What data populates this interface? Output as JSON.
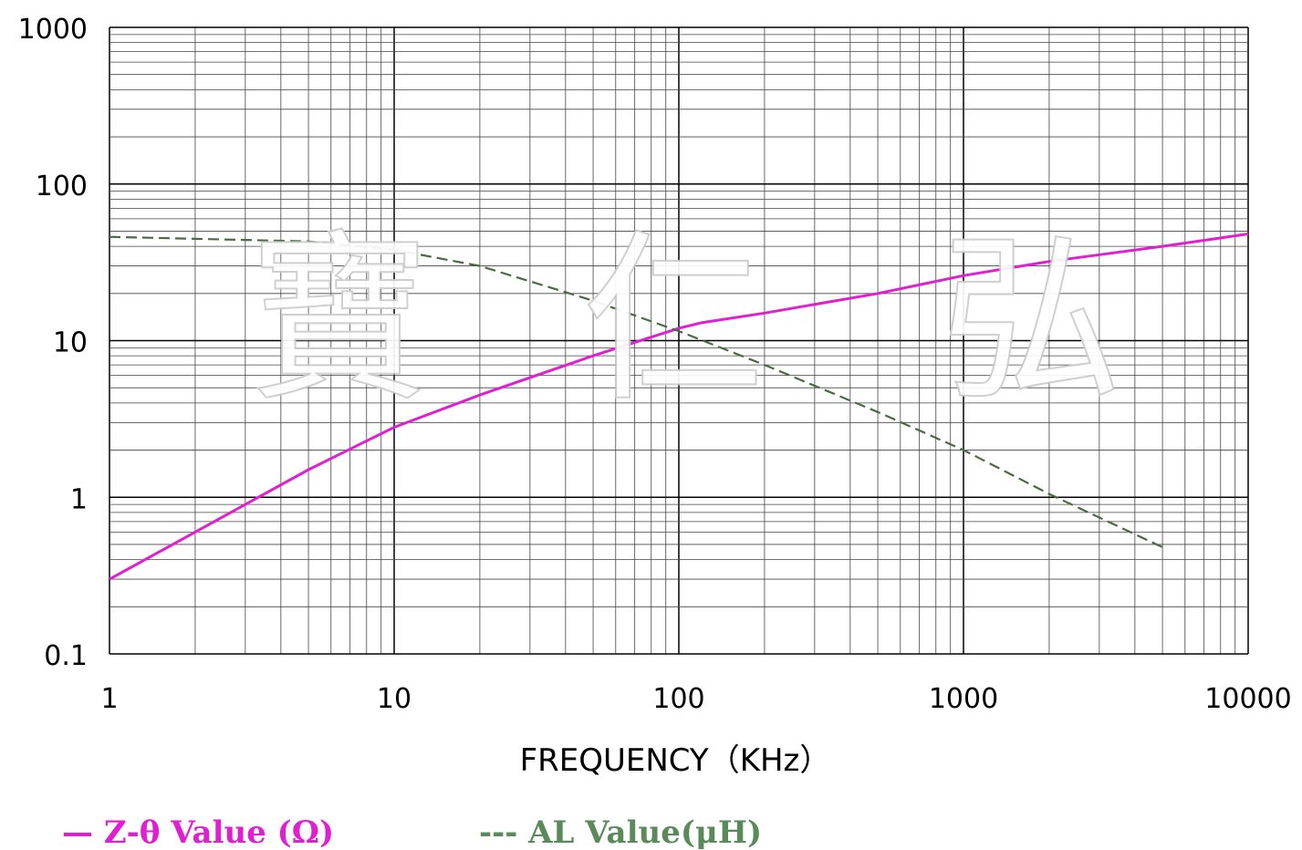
{
  "chart_data": {
    "type": "line",
    "x_scale": "log",
    "y_scale": "log",
    "xlim": [
      1,
      10000
    ],
    "ylim": [
      0.1,
      1000
    ],
    "x_ticks": [
      "1",
      "10",
      "100",
      "1000",
      "10000"
    ],
    "y_ticks": [
      "0.1",
      "1",
      "10",
      "100",
      "1000"
    ],
    "xlabel": "FREQUENCY（KHz）",
    "ylabel": "",
    "grid": true,
    "legend_position": "bottom",
    "series": [
      {
        "name": "Z-θ Value (Ω)",
        "legend_text": "— Z-θ Value (Ω)",
        "color": "#e020d0",
        "style": "solid",
        "points": [
          [
            1,
            0.3
          ],
          [
            2,
            0.6
          ],
          [
            5,
            1.5
          ],
          [
            10,
            2.8
          ],
          [
            20,
            4.5
          ],
          [
            50,
            8
          ],
          [
            100,
            12
          ],
          [
            120,
            13
          ],
          [
            200,
            15
          ],
          [
            500,
            20
          ],
          [
            1000,
            26
          ],
          [
            2000,
            32
          ],
          [
            5000,
            40
          ],
          [
            10000,
            48
          ]
        ]
      },
      {
        "name": "AL Value(μH)",
        "legend_text": "--- AL Value(μH)",
        "color": "#4a6a40",
        "style": "dashed",
        "points": [
          [
            1,
            46
          ],
          [
            5,
            43
          ],
          [
            10,
            38
          ],
          [
            20,
            30
          ],
          [
            50,
            18
          ],
          [
            100,
            11.5
          ],
          [
            200,
            7
          ],
          [
            500,
            3.5
          ],
          [
            1000,
            2
          ],
          [
            2000,
            1.05
          ],
          [
            5000,
            0.48
          ]
        ]
      }
    ],
    "legend_colors": {
      "z": "#e020d0",
      "al": "#5a8a5a"
    },
    "watermark": [
      "寶",
      "仁",
      "弘"
    ]
  }
}
